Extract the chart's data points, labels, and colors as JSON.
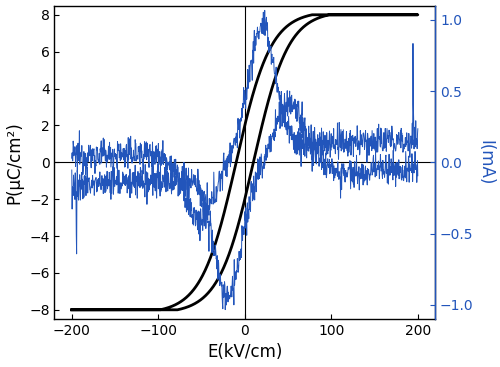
{
  "xlim": [
    -220,
    220
  ],
  "ylim_left": [
    -8.5,
    8.5
  ],
  "ylim_right": [
    -1.1,
    1.1
  ],
  "xticks": [
    -200,
    -100,
    0,
    100,
    200
  ],
  "yticks_left": [
    -8,
    -6,
    -4,
    -2,
    0,
    2,
    4,
    6,
    8
  ],
  "yticks_right": [
    -1.0,
    -0.5,
    0.0,
    0.5,
    1.0
  ],
  "xlabel": "E(kV/cm)",
  "ylabel_left": "P(μC/cm²)",
  "ylabel_right": "I(mA)",
  "pe_color": "#000000",
  "ie_color": "#2255bb",
  "pe_linewidth": 2.0,
  "ie_linewidth": 0.7,
  "axis_linewidth": 1.0,
  "figsize": [
    5.0,
    3.67
  ],
  "dpi": 100
}
